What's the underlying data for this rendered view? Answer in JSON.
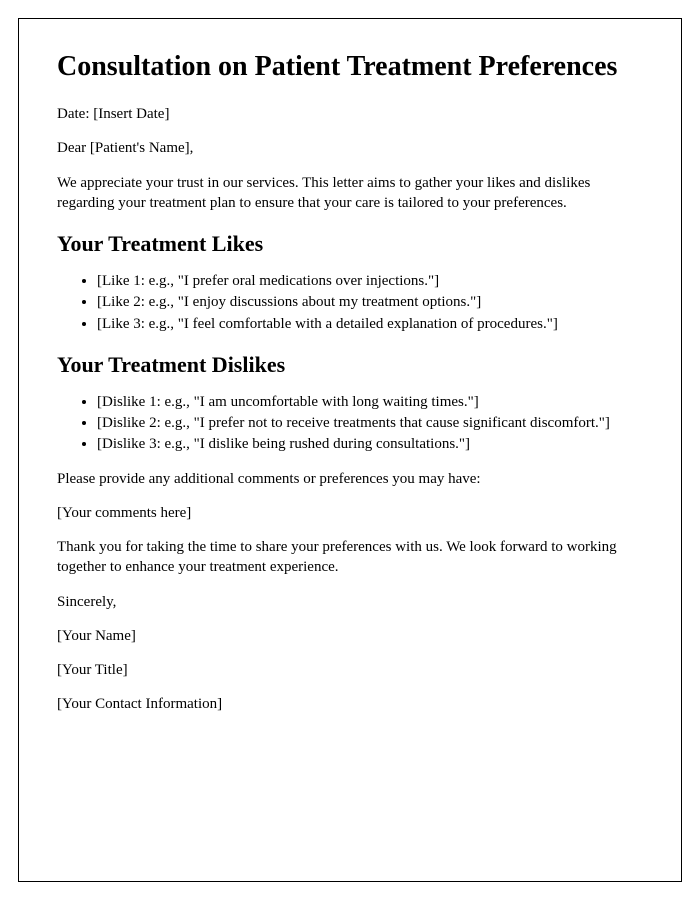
{
  "title": "Consultation on Patient Treatment Preferences",
  "date_line": "Date: [Insert Date]",
  "salutation": "Dear [Patient's Name],",
  "intro": "We appreciate your trust in our services. This letter aims to gather your likes and dislikes regarding your treatment plan to ensure that your care is tailored to your preferences.",
  "likes_heading": "Your Treatment Likes",
  "likes": [
    "[Like 1: e.g., \"I prefer oral medications over injections.\"]",
    "[Like 2: e.g., \"I enjoy discussions about my treatment options.\"]",
    "[Like 3: e.g., \"I feel comfortable with a detailed explanation of procedures.\"]"
  ],
  "dislikes_heading": "Your Treatment Dislikes",
  "dislikes": [
    "[Dislike 1: e.g., \"I am uncomfortable with long waiting times.\"]",
    "[Dislike 2: e.g., \"I prefer not to receive treatments that cause significant discomfort.\"]",
    "[Dislike 3: e.g., \"I dislike being rushed during consultations.\"]"
  ],
  "additional_prompt": "Please provide any additional comments or preferences you may have:",
  "comments_placeholder": "[Your comments here]",
  "thank_you": "Thank you for taking the time to share your preferences with us. We look forward to working together to enhance your treatment experience.",
  "closing": "Sincerely,",
  "signature_name": "[Your Name]",
  "signature_title": "[Your Title]",
  "signature_contact": "[Your Contact Information]"
}
